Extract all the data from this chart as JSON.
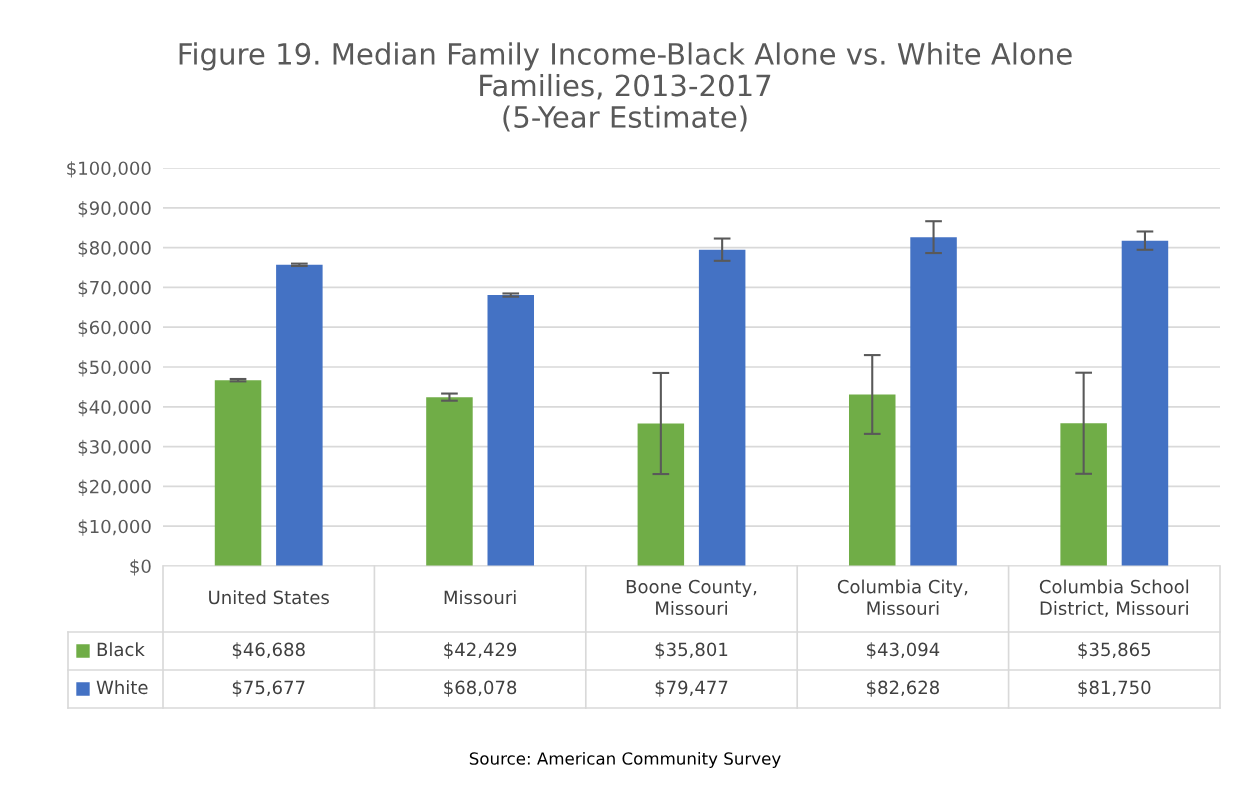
{
  "chart_data": {
    "type": "bar",
    "title": "Figure 19. Median Family Income-Black Alone vs. White Alone\nFamilies, 2013-2017\n(5-Year Estimate)",
    "categories": [
      "United States",
      "Missouri",
      "Boone County, Missouri",
      "Columbia City, Missouri",
      "Columbia School District, Missouri"
    ],
    "series": [
      {
        "name": "Black",
        "color": "#70ad47",
        "values": [
          46688,
          42429,
          35801,
          43094,
          35865
        ],
        "errors": [
          300,
          900,
          12700,
          9900,
          12700
        ],
        "value_labels": [
          "$46,688",
          "$42,429",
          "$35,801",
          "$43,094",
          "$35,865"
        ]
      },
      {
        "name": "White",
        "color": "#4472c4",
        "values": [
          75677,
          68078,
          79477,
          82628,
          81750
        ],
        "errors": [
          300,
          400,
          2800,
          4000,
          2300
        ],
        "value_labels": [
          "$75,677",
          "$68,078",
          "$79,477",
          "$82,628",
          "$81,750"
        ]
      }
    ],
    "ylim": [
      0,
      100000
    ],
    "yticks": [
      {
        "value": 0,
        "label": "$0"
      },
      {
        "value": 10000,
        "label": "$10,000"
      },
      {
        "value": 20000,
        "label": "$20,000"
      },
      {
        "value": 30000,
        "label": "$30,000"
      },
      {
        "value": 40000,
        "label": "$40,000"
      },
      {
        "value": 50000,
        "label": "$50,000"
      },
      {
        "value": 60000,
        "label": "$60,000"
      },
      {
        "value": 70000,
        "label": "$70,000"
      },
      {
        "value": 80000,
        "label": "$80,000"
      },
      {
        "value": 90000,
        "label": "$90,000"
      },
      {
        "value": 100000,
        "label": "$100,000"
      }
    ],
    "grid": "y",
    "legend": "bottom",
    "annotations": [
      "Source: American Community Survey"
    ]
  }
}
